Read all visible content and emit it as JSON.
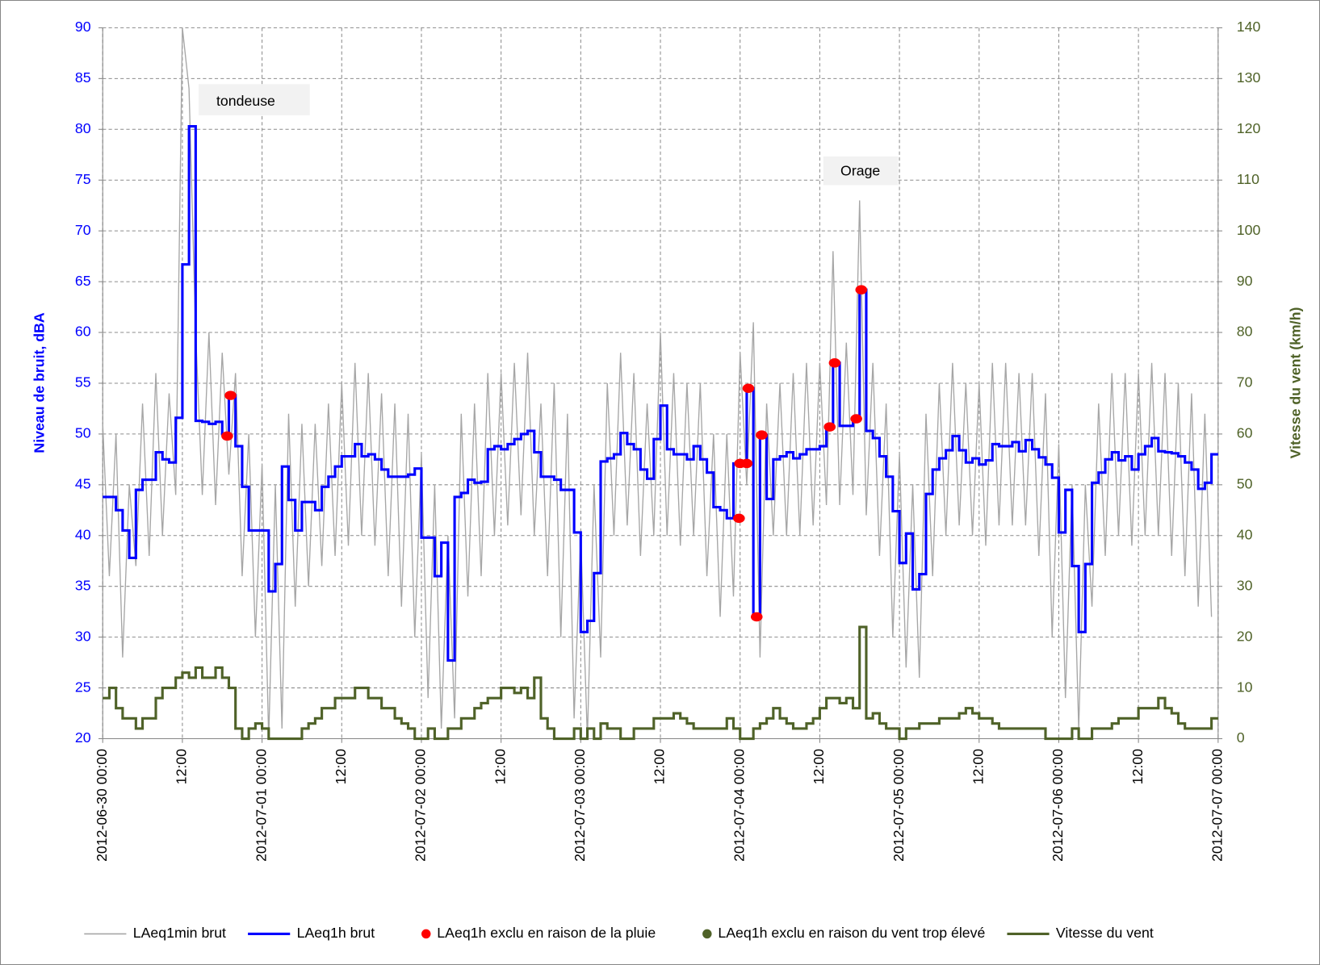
{
  "chart_data": {
    "type": "line",
    "y_label": "Niveau de bruit, dBA",
    "y2_label": "Vitesse du vent (km/h)",
    "annotations": [
      "tondeuse",
      "Orage"
    ],
    "grid": true,
    "step": "post",
    "legend": "bottom",
    "xlim": [
      "2012-06-30 00:00",
      "2012-07-07 00:00"
    ],
    "xticks": [
      "2012-06-30 00:00",
      {
        "value": "2012-06-30 12:00",
        "label": "12:00"
      },
      "2012-07-01 00:00",
      {
        "value": "2012-07-01 12:00",
        "label": "12:00"
      },
      "2012-07-02 00:00",
      {
        "value": "2012-07-02 12:00",
        "label": "12:00"
      },
      "2012-07-03 00:00",
      {
        "value": "2012-07-03 12:00",
        "label": "12:00"
      },
      "2012-07-04 00:00",
      {
        "value": "2012-07-04 12:00",
        "label": "12:00"
      },
      "2012-07-05 00:00",
      {
        "value": "2012-07-05 12:00",
        "label": "12:00"
      },
      "2012-07-06 00:00",
      {
        "value": "2012-07-06 12:00",
        "label": "12:00"
      },
      "2012-07-07 00:00"
    ],
    "ylim": [
      20,
      90
    ],
    "yticks": [
      20,
      25,
      30,
      35,
      40,
      45,
      50,
      55,
      60,
      65,
      70,
      75,
      80,
      85,
      90
    ],
    "y2lim": [
      0,
      140
    ],
    "y2ticks": [
      0,
      10,
      20,
      30,
      40,
      50,
      60,
      70,
      80,
      90,
      100,
      110,
      120,
      130,
      140
    ],
    "x": [
      "2012-06-30 00:00",
      "2012-06-30 01:00",
      "2012-06-30 02:00",
      "2012-06-30 03:00",
      "2012-06-30 04:00",
      "2012-06-30 05:00",
      "2012-06-30 06:00",
      "2012-06-30 07:00",
      "2012-06-30 08:00",
      "2012-06-30 09:00",
      "2012-06-30 10:00",
      "2012-06-30 11:00",
      "2012-06-30 12:00",
      "2012-06-30 13:00",
      "2012-06-30 14:00",
      "2012-06-30 15:00",
      "2012-06-30 16:00",
      "2012-06-30 17:00",
      "2012-06-30 18:00",
      "2012-06-30 19:00",
      "2012-06-30 20:00",
      "2012-06-30 21:00",
      "2012-06-30 22:00",
      "2012-06-30 23:00",
      "2012-07-01 00:00",
      "2012-07-01 01:00",
      "2012-07-01 02:00",
      "2012-07-01 03:00",
      "2012-07-01 04:00",
      "2012-07-01 05:00",
      "2012-07-01 06:00",
      "2012-07-01 07:00",
      "2012-07-01 08:00",
      "2012-07-01 09:00",
      "2012-07-01 10:00",
      "2012-07-01 11:00",
      "2012-07-01 12:00",
      "2012-07-01 13:00",
      "2012-07-01 14:00",
      "2012-07-01 15:00",
      "2012-07-01 16:00",
      "2012-07-01 17:00",
      "2012-07-01 18:00",
      "2012-07-01 19:00",
      "2012-07-01 20:00",
      "2012-07-01 21:00",
      "2012-07-01 22:00",
      "2012-07-01 23:00",
      "2012-07-02 00:00",
      "2012-07-02 01:00",
      "2012-07-02 02:00",
      "2012-07-02 03:00",
      "2012-07-02 04:00",
      "2012-07-02 05:00",
      "2012-07-02 06:00",
      "2012-07-02 07:00",
      "2012-07-02 08:00",
      "2012-07-02 09:00",
      "2012-07-02 10:00",
      "2012-07-02 11:00",
      "2012-07-02 12:00",
      "2012-07-02 13:00",
      "2012-07-02 14:00",
      "2012-07-02 15:00",
      "2012-07-02 16:00",
      "2012-07-02 17:00",
      "2012-07-02 18:00",
      "2012-07-02 19:00",
      "2012-07-02 20:00",
      "2012-07-02 21:00",
      "2012-07-02 22:00",
      "2012-07-02 23:00",
      "2012-07-03 00:00",
      "2012-07-03 01:00",
      "2012-07-03 02:00",
      "2012-07-03 03:00",
      "2012-07-03 04:00",
      "2012-07-03 05:00",
      "2012-07-03 06:00",
      "2012-07-03 07:00",
      "2012-07-03 08:00",
      "2012-07-03 09:00",
      "2012-07-03 10:00",
      "2012-07-03 11:00",
      "2012-07-03 12:00",
      "2012-07-03 13:00",
      "2012-07-03 14:00",
      "2012-07-03 15:00",
      "2012-07-03 16:00",
      "2012-07-03 17:00",
      "2012-07-03 18:00",
      "2012-07-03 19:00",
      "2012-07-03 20:00",
      "2012-07-03 21:00",
      "2012-07-03 22:00",
      "2012-07-03 23:00",
      "2012-07-04 00:00",
      "2012-07-04 01:00",
      "2012-07-04 02:00",
      "2012-07-04 03:00",
      "2012-07-04 04:00",
      "2012-07-04 05:00",
      "2012-07-04 06:00",
      "2012-07-04 07:00",
      "2012-07-04 08:00",
      "2012-07-04 09:00",
      "2012-07-04 10:00",
      "2012-07-04 11:00",
      "2012-07-04 12:00",
      "2012-07-04 13:00",
      "2012-07-04 14:00",
      "2012-07-04 15:00",
      "2012-07-04 16:00",
      "2012-07-04 17:00",
      "2012-07-04 18:00",
      "2012-07-04 19:00",
      "2012-07-04 20:00",
      "2012-07-04 21:00",
      "2012-07-04 22:00",
      "2012-07-04 23:00",
      "2012-07-05 00:00",
      "2012-07-05 01:00",
      "2012-07-05 02:00",
      "2012-07-05 03:00",
      "2012-07-05 04:00",
      "2012-07-05 05:00",
      "2012-07-05 06:00",
      "2012-07-05 07:00",
      "2012-07-05 08:00",
      "2012-07-05 09:00",
      "2012-07-05 10:00",
      "2012-07-05 11:00",
      "2012-07-05 12:00",
      "2012-07-05 13:00",
      "2012-07-05 14:00",
      "2012-07-05 15:00",
      "2012-07-05 16:00",
      "2012-07-05 17:00",
      "2012-07-05 18:00",
      "2012-07-05 19:00",
      "2012-07-05 20:00",
      "2012-07-05 21:00",
      "2012-07-05 22:00",
      "2012-07-05 23:00",
      "2012-07-06 00:00",
      "2012-07-06 01:00",
      "2012-07-06 02:00",
      "2012-07-06 03:00",
      "2012-07-06 04:00",
      "2012-07-06 05:00",
      "2012-07-06 06:00",
      "2012-07-06 07:00",
      "2012-07-06 08:00",
      "2012-07-06 09:00",
      "2012-07-06 10:00",
      "2012-07-06 11:00",
      "2012-07-06 12:00",
      "2012-07-06 13:00",
      "2012-07-06 14:00",
      "2012-07-06 15:00",
      "2012-07-06 16:00",
      "2012-07-06 17:00",
      "2012-07-06 18:00",
      "2012-07-06 19:00",
      "2012-07-06 20:00",
      "2012-07-06 21:00",
      "2012-07-06 22:00",
      "2012-07-06 23:00"
    ],
    "series": [
      {
        "name": "LAeq1min brut",
        "color": "#a6a6a6",
        "kind": "line",
        "values": [
          51,
          36,
          50,
          28,
          45,
          37,
          53,
          38,
          56,
          40,
          54,
          44,
          90,
          84,
          60,
          44,
          60,
          43,
          58,
          46,
          56,
          36,
          50,
          30,
          47,
          20,
          45,
          21,
          52,
          33,
          51,
          35,
          51,
          37,
          53,
          38,
          55,
          39,
          57,
          40,
          56,
          39,
          54,
          36,
          53,
          33,
          52,
          30,
          48,
          24,
          45,
          21,
          40,
          22,
          52,
          34,
          53,
          36,
          56,
          40,
          56,
          41,
          57,
          42,
          58,
          40,
          53,
          36,
          55,
          30,
          52,
          22,
          40,
          20,
          45,
          28,
          55,
          40,
          58,
          41,
          56,
          38,
          53,
          40,
          60,
          40,
          56,
          39,
          55,
          40,
          55,
          36,
          50,
          32,
          50,
          34,
          58,
          45,
          61,
          28,
          53,
          40,
          55,
          40,
          56,
          40,
          57,
          41,
          57,
          43,
          68,
          43,
          59,
          44,
          73,
          42,
          57,
          38,
          53,
          30,
          48,
          27,
          45,
          26,
          52,
          36,
          55,
          40,
          57,
          41,
          55,
          40,
          55,
          39,
          57,
          41,
          57,
          41,
          56,
          41,
          56,
          38,
          54,
          30,
          49,
          24,
          45,
          21,
          45,
          33,
          53,
          38,
          56,
          40,
          56,
          39,
          56,
          40,
          57,
          40,
          56,
          38,
          55,
          36,
          54,
          33,
          52,
          32
        ]
      },
      {
        "name": "LAeq1h brut",
        "color": "#0000ff",
        "kind": "step",
        "values": [
          43.8,
          43.8,
          42.5,
          40.5,
          37.8,
          44.5,
          45.5,
          45.5,
          48.2,
          47.5,
          47.2,
          51.6,
          66.7,
          80.3,
          51.3,
          51.2,
          51,
          51.2,
          50,
          53.8,
          48.8,
          44.8,
          40.5,
          40.5,
          40.5,
          34.5,
          37.2,
          46.8,
          43.5,
          40.5,
          43.3,
          43.3,
          42.5,
          44.8,
          45.8,
          46.8,
          47.8,
          47.8,
          49,
          47.8,
          48,
          47.5,
          46.5,
          45.8,
          45.8,
          45.8,
          46,
          46.6,
          39.8,
          39.8,
          36,
          39.3,
          27.7,
          43.8,
          44.2,
          45.5,
          45.2,
          45.3,
          48.5,
          48.8,
          48.5,
          49,
          49.5,
          50,
          50.3,
          48.2,
          45.8,
          45.8,
          45.5,
          44.5,
          44.5,
          40.3,
          30.5,
          31.6,
          36.3,
          47.3,
          47.6,
          48,
          50.1,
          49,
          48.5,
          46.5,
          45.6,
          49.5,
          52.8,
          48.5,
          48,
          48,
          47.5,
          48.8,
          47.5,
          46.2,
          42.8,
          42.5,
          41.7,
          47.1,
          47.1,
          54.5,
          32,
          49.9,
          43.6,
          47.5,
          47.8,
          48.2,
          47.6,
          48,
          48.5,
          48.5,
          48.8,
          50.7,
          57,
          50.8,
          50.8,
          51.5,
          64.2,
          50.3,
          49.6,
          47.8,
          45.8,
          42.4,
          37.3,
          40.2,
          34.7,
          36.2,
          44.1,
          46.5,
          47.6,
          48.4,
          49.8,
          48.4,
          47.2,
          47.6,
          47,
          47.4,
          49,
          48.8,
          48.8,
          49.2,
          48.3,
          49.4,
          48.5,
          47.7,
          47,
          45.7,
          40.3,
          44.5,
          37,
          30.5,
          37.2,
          45.2,
          46.2,
          47.5,
          48.2,
          47.4,
          47.8,
          46.5,
          48,
          48.8,
          49.6,
          48.3,
          48.2,
          48.1,
          47.8,
          47.2,
          46.5,
          44.6,
          45.2,
          48
        ]
      },
      {
        "name": "LAeq1h exclu en raison de la pluie",
        "color": "#ff0000",
        "kind": "points",
        "x": [
          "2012-06-30 18:45",
          "2012-06-30 19:15",
          "2012-07-03 23:50",
          "2012-07-04 00:00",
          "2012-07-04 01:00",
          "2012-07-04 01:15",
          "2012-07-04 02:30",
          "2012-07-04 03:15",
          "2012-07-04 13:30",
          "2012-07-04 14:15",
          "2012-07-04 17:30",
          "2012-07-04 18:15"
        ],
        "values": [
          49.8,
          53.8,
          41.7,
          47.1,
          47.1,
          54.5,
          32,
          49.9,
          50.7,
          57,
          51.5,
          64.2
        ]
      },
      {
        "name": "LAeq1h exclu en raison du vent trop élevé",
        "color": "#4f6228",
        "kind": "points",
        "x": [],
        "values": []
      },
      {
        "name": "Vitesse du vent",
        "color": "#4f6228",
        "kind": "step",
        "axis": "y2",
        "values": [
          8,
          10,
          6,
          4,
          4,
          2,
          4,
          4,
          8,
          10,
          10,
          12,
          13,
          12,
          14,
          12,
          12,
          14,
          12,
          10,
          2,
          0,
          2,
          3,
          2,
          0,
          0,
          0,
          0,
          0,
          2,
          3,
          4,
          6,
          6,
          8,
          8,
          8,
          10,
          10,
          8,
          8,
          6,
          6,
          4,
          3,
          2,
          0,
          0,
          2,
          0,
          0,
          2,
          2,
          4,
          4,
          6,
          7,
          8,
          8,
          10,
          10,
          9,
          10,
          8,
          12,
          4,
          2,
          0,
          0,
          0,
          2,
          0,
          2,
          0,
          3,
          2,
          2,
          0,
          0,
          2,
          2,
          2,
          4,
          4,
          4,
          5,
          4,
          3,
          2,
          2,
          2,
          2,
          2,
          4,
          2,
          0,
          0,
          2,
          3,
          4,
          6,
          4,
          3,
          2,
          2,
          3,
          4,
          6,
          8,
          8,
          7,
          8,
          6,
          22,
          4,
          5,
          3,
          2,
          2,
          0,
          2,
          2,
          3,
          3,
          3,
          4,
          4,
          4,
          5,
          6,
          5,
          4,
          4,
          3,
          2,
          2,
          2,
          2,
          2,
          2,
          2,
          0,
          0,
          0,
          0,
          2,
          0,
          0,
          2,
          2,
          2,
          3,
          4,
          4,
          4,
          6,
          6,
          6,
          8,
          6,
          5,
          3,
          2,
          2,
          2,
          2,
          4
        ]
      }
    ]
  }
}
